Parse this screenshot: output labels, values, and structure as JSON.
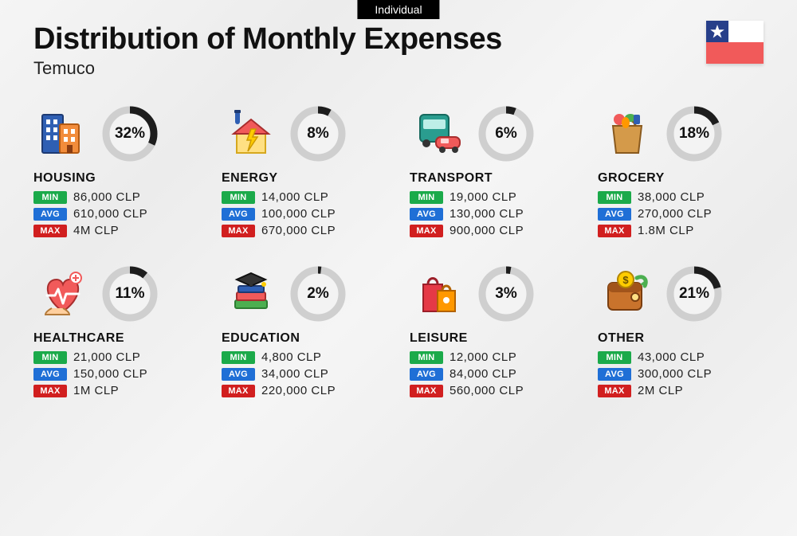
{
  "tag": "Individual",
  "title": "Distribution of Monthly Expenses",
  "subtitle": "Temuco",
  "flag": {
    "top_left_bg": "#273f8a",
    "top_right_bg": "#ffffff",
    "bottom_bg": "#f15a5a",
    "star_color": "#ffffff"
  },
  "labels": {
    "min": "MIN",
    "avg": "AVG",
    "max": "MAX"
  },
  "tag_colors": {
    "min": "#1baa4a",
    "avg": "#1f6fd6",
    "max": "#d11f1f"
  },
  "ring_style": {
    "stroke_width": 9,
    "track_color": "#cfcfcf",
    "progress_color": "#1d1d1d",
    "inner_bg": "#f3f3f3"
  },
  "categories": [
    {
      "name": "HOUSING",
      "percent": 32,
      "min": "86,000 CLP",
      "avg": "610,000 CLP",
      "max": "4M CLP",
      "icon": "housing"
    },
    {
      "name": "ENERGY",
      "percent": 8,
      "min": "14,000 CLP",
      "avg": "100,000 CLP",
      "max": "670,000 CLP",
      "icon": "energy"
    },
    {
      "name": "TRANSPORT",
      "percent": 6,
      "min": "19,000 CLP",
      "avg": "130,000 CLP",
      "max": "900,000 CLP",
      "icon": "transport"
    },
    {
      "name": "GROCERY",
      "percent": 18,
      "min": "38,000 CLP",
      "avg": "270,000 CLP",
      "max": "1.8M CLP",
      "icon": "grocery"
    },
    {
      "name": "HEALTHCARE",
      "percent": 11,
      "min": "21,000 CLP",
      "avg": "150,000 CLP",
      "max": "1M CLP",
      "icon": "healthcare"
    },
    {
      "name": "EDUCATION",
      "percent": 2,
      "min": "4,800 CLP",
      "avg": "34,000 CLP",
      "max": "220,000 CLP",
      "icon": "education"
    },
    {
      "name": "LEISURE",
      "percent": 3,
      "min": "12,000 CLP",
      "avg": "84,000 CLP",
      "max": "560,000 CLP",
      "icon": "leisure"
    },
    {
      "name": "OTHER",
      "percent": 21,
      "min": "43,000 CLP",
      "avg": "300,000 CLP",
      "max": "2M CLP",
      "icon": "other"
    }
  ]
}
